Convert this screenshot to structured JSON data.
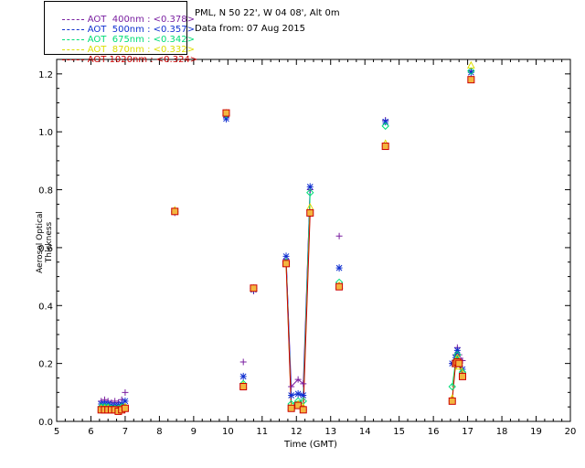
{
  "site_title": "PML, N 50 22', W 04 08', Alt 0m",
  "data_date": "Data from: 07 Aug 2015",
  "colors": {
    "aot_400": "#7a1fa0",
    "aot_500": "#1030d0",
    "aot_675": "#00dd77",
    "aot_870": "#dddd00",
    "aot_1020": "#cc0000"
  },
  "legend": [
    {
      "label": "AOT  400nm : <0.378>",
      "color": "#7a1fa0"
    },
    {
      "label": "AOT  500nm : <0.357>",
      "color": "#1030d0"
    },
    {
      "label": "AOT  675nm : <0.342>",
      "color": "#00dd77"
    },
    {
      "label": "AOT  870nm : <0.332>",
      "color": "#dddd00"
    },
    {
      "label": "AOT 1020nm : <0.324>",
      "color": "#cc0000"
    }
  ],
  "chart_data": {
    "type": "scatter",
    "xlabel": "Time (GMT)",
    "ylabel": "Aerosol Optical Thickness",
    "xlim": [
      5,
      20
    ],
    "ylim": [
      0,
      1.25
    ],
    "xticks": [
      "5",
      "6",
      "7",
      "8",
      "9",
      "10",
      "11",
      "12",
      "13",
      "14",
      "15",
      "16",
      "17",
      "18",
      "19",
      "20"
    ],
    "yticks": [
      "0.0",
      "0.2",
      "0.4",
      "0.6",
      "0.8",
      "1.0",
      "1.2"
    ],
    "series": [
      {
        "name": "AOT 400nm",
        "marker": "plus",
        "x": [
          6.3,
          6.4,
          6.5,
          6.6,
          6.7,
          6.8,
          6.9,
          7.0,
          8.45,
          9.95,
          10.45,
          10.75,
          11.7,
          11.85,
          12.05,
          12.2,
          12.4,
          13.25,
          14.6,
          16.55,
          16.65,
          16.7,
          16.75,
          16.85,
          17.1
        ],
        "y": [
          0.07,
          0.075,
          0.07,
          0.065,
          0.07,
          0.065,
          0.075,
          0.1,
          0.72,
          1.05,
          0.205,
          0.45,
          0.56,
          0.12,
          0.145,
          0.13,
          0.8,
          0.64,
          1.04,
          0.2,
          0.23,
          0.255,
          0.23,
          0.21,
          1.21
        ]
      },
      {
        "name": "AOT 500nm",
        "marker": "star",
        "x": [
          6.3,
          6.4,
          6.5,
          6.6,
          6.7,
          6.8,
          6.9,
          7.0,
          8.45,
          9.95,
          10.45,
          10.75,
          11.7,
          11.85,
          12.05,
          12.2,
          12.4,
          13.25,
          14.6,
          16.55,
          16.65,
          16.7,
          16.75,
          16.85,
          17.1
        ],
        "y": [
          0.06,
          0.06,
          0.06,
          0.055,
          0.055,
          0.055,
          0.06,
          0.07,
          0.725,
          1.045,
          0.155,
          0.455,
          0.57,
          0.09,
          0.095,
          0.09,
          0.81,
          0.53,
          1.035,
          0.2,
          0.22,
          0.245,
          0.2,
          0.18,
          1.205
        ]
      },
      {
        "name": "AOT 675nm",
        "marker": "diamond",
        "x": [
          6.3,
          6.4,
          6.5,
          6.6,
          6.7,
          6.8,
          6.9,
          7.0,
          8.45,
          9.95,
          10.45,
          10.75,
          11.7,
          11.85,
          12.05,
          12.2,
          12.4,
          13.25,
          14.6,
          16.55,
          16.65,
          16.7,
          16.75,
          16.85,
          17.1
        ],
        "y": [
          0.05,
          0.05,
          0.05,
          0.045,
          0.045,
          0.045,
          0.05,
          0.05,
          0.725,
          1.06,
          0.13,
          0.46,
          0.55,
          0.06,
          0.07,
          0.07,
          0.79,
          0.48,
          1.02,
          0.12,
          0.21,
          0.23,
          0.2,
          0.17,
          1.21
        ]
      },
      {
        "name": "AOT 870nm",
        "marker": "triangle",
        "x": [
          6.3,
          6.4,
          6.5,
          6.6,
          6.7,
          6.8,
          6.9,
          7.0,
          8.45,
          9.95,
          10.45,
          10.75,
          11.7,
          11.85,
          12.05,
          12.2,
          12.4,
          13.25,
          14.6,
          16.55,
          16.65,
          16.7,
          16.75,
          16.85,
          17.1
        ],
        "y": [
          0.045,
          0.045,
          0.045,
          0.04,
          0.04,
          0.04,
          0.045,
          0.05,
          0.73,
          1.065,
          0.125,
          0.46,
          0.545,
          0.05,
          0.06,
          0.05,
          0.74,
          0.47,
          0.96,
          0.08,
          0.2,
          0.22,
          0.19,
          0.165,
          1.23
        ]
      },
      {
        "name": "AOT 1020nm",
        "marker": "square",
        "x": [
          6.3,
          6.4,
          6.5,
          6.6,
          6.7,
          6.8,
          6.9,
          7.0,
          8.45,
          9.95,
          10.45,
          10.75,
          11.7,
          11.85,
          12.05,
          12.2,
          12.4,
          13.25,
          14.6,
          16.55,
          16.65,
          16.7,
          16.75,
          16.85,
          17.1
        ],
        "y": [
          0.04,
          0.04,
          0.04,
          0.04,
          0.04,
          0.035,
          0.04,
          0.045,
          0.725,
          1.065,
          0.12,
          0.46,
          0.545,
          0.045,
          0.055,
          0.04,
          0.72,
          0.465,
          0.95,
          0.07,
          0.2,
          0.205,
          0.2,
          0.155,
          1.18
        ]
      }
    ],
    "connected_segments": [
      [
        11.7,
        11.85,
        12.05,
        12.2,
        12.4
      ],
      [
        16.55,
        16.65,
        16.7,
        16.75,
        16.85
      ]
    ]
  }
}
